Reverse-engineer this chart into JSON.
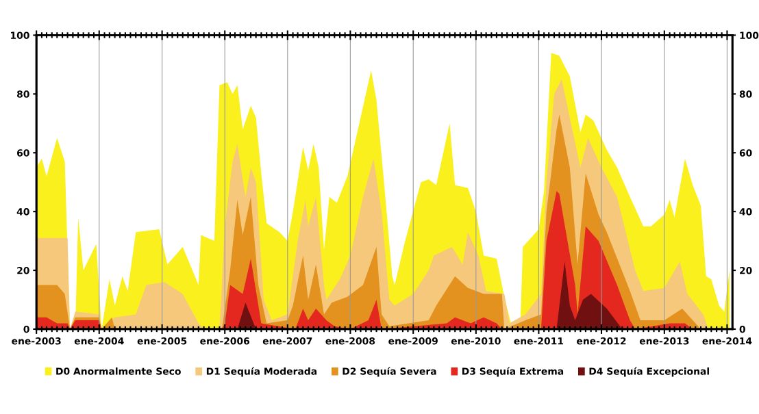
{
  "chart_data": {
    "type": "area",
    "xlim": [
      "2003-01-01",
      "2014-02-01"
    ],
    "xticks": [
      {
        "value": "2003-01-01",
        "label": "ene-2003"
      },
      {
        "value": "2004-01-01",
        "label": "ene-2004"
      },
      {
        "value": "2005-01-01",
        "label": "ene-2005"
      },
      {
        "value": "2006-01-01",
        "label": "ene-2006"
      },
      {
        "value": "2007-01-01",
        "label": "ene-2007"
      },
      {
        "value": "2008-01-01",
        "label": "ene-2008"
      },
      {
        "value": "2009-01-01",
        "label": "ene-2009"
      },
      {
        "value": "2010-01-01",
        "label": "ene-2010"
      },
      {
        "value": "2011-01-01",
        "label": "ene-2011"
      },
      {
        "value": "2012-01-01",
        "label": "ene-2012"
      },
      {
        "value": "2013-01-01",
        "label": "ene-2013"
      },
      {
        "value": "2014-01-01",
        "label": "ene-2014"
      },
      {
        "value": "2003-02-01",
        "label": null
      },
      {
        "value": "2003-03-01",
        "label": null
      },
      {
        "value": "2003-04-01",
        "label": null
      },
      {
        "value": "2003-05-01",
        "label": null
      },
      {
        "value": "2003-06-01",
        "label": null
      },
      {
        "value": "2003-07-01",
        "label": null
      },
      {
        "value": "2003-08-01",
        "label": null
      },
      {
        "value": "2003-09-01",
        "label": null
      },
      {
        "value": "2003-10-01",
        "label": null
      },
      {
        "value": "2003-11-01",
        "label": null
      },
      {
        "value": "2003-12-01",
        "label": null
      },
      {
        "value": "2004-02-01",
        "label": null
      },
      {
        "value": "2004-03-01",
        "label": null
      },
      {
        "value": "2004-04-01",
        "label": null
      },
      {
        "value": "2004-05-01",
        "label": null
      },
      {
        "value": "2004-06-01",
        "label": null
      },
      {
        "value": "2004-07-01",
        "label": null
      },
      {
        "value": "2004-08-01",
        "label": null
      },
      {
        "value": "2004-09-01",
        "label": null
      },
      {
        "value": "2004-10-01",
        "label": null
      },
      {
        "value": "2004-11-01",
        "label": null
      },
      {
        "value": "2004-12-01",
        "label": null
      },
      {
        "value": "2005-02-01",
        "label": null
      },
      {
        "value": "2005-03-01",
        "label": null
      },
      {
        "value": "2005-04-01",
        "label": null
      },
      {
        "value": "2005-05-01",
        "label": null
      },
      {
        "value": "2005-06-01",
        "label": null
      },
      {
        "value": "2005-07-01",
        "label": null
      },
      {
        "value": "2005-08-01",
        "label": null
      },
      {
        "value": "2005-09-01",
        "label": null
      },
      {
        "value": "2005-10-01",
        "label": null
      },
      {
        "value": "2005-11-01",
        "label": null
      },
      {
        "value": "2005-12-01",
        "label": null
      },
      {
        "value": "2006-02-01",
        "label": null
      },
      {
        "value": "2006-03-01",
        "label": null
      },
      {
        "value": "2006-04-01",
        "label": null
      },
      {
        "value": "2006-05-01",
        "label": null
      },
      {
        "value": "2006-06-01",
        "label": null
      },
      {
        "value": "2006-07-01",
        "label": null
      },
      {
        "value": "2006-08-01",
        "label": null
      },
      {
        "value": "2006-09-01",
        "label": null
      },
      {
        "value": "2006-10-01",
        "label": null
      },
      {
        "value": "2006-11-01",
        "label": null
      },
      {
        "value": "2006-12-01",
        "label": null
      },
      {
        "value": "2007-02-01",
        "label": null
      },
      {
        "value": "2007-03-01",
        "label": null
      },
      {
        "value": "2007-04-01",
        "label": null
      },
      {
        "value": "2007-05-01",
        "label": null
      },
      {
        "value": "2007-06-01",
        "label": null
      },
      {
        "value": "2007-07-01",
        "label": null
      },
      {
        "value": "2007-08-01",
        "label": null
      },
      {
        "value": "2007-09-01",
        "label": null
      },
      {
        "value": "2007-10-01",
        "label": null
      },
      {
        "value": "2007-11-01",
        "label": null
      },
      {
        "value": "2007-12-01",
        "label": null
      },
      {
        "value": "2008-02-01",
        "label": null
      },
      {
        "value": "2008-03-01",
        "label": null
      },
      {
        "value": "2008-04-01",
        "label": null
      },
      {
        "value": "2008-05-01",
        "label": null
      },
      {
        "value": "2008-06-01",
        "label": null
      },
      {
        "value": "2008-07-01",
        "label": null
      },
      {
        "value": "2008-08-01",
        "label": null
      },
      {
        "value": "2008-09-01",
        "label": null
      },
      {
        "value": "2008-10-01",
        "label": null
      },
      {
        "value": "2008-11-01",
        "label": null
      },
      {
        "value": "2008-12-01",
        "label": null
      },
      {
        "value": "2009-02-01",
        "label": null
      },
      {
        "value": "2009-03-01",
        "label": null
      },
      {
        "value": "2009-04-01",
        "label": null
      },
      {
        "value": "2009-05-01",
        "label": null
      },
      {
        "value": "2009-06-01",
        "label": null
      },
      {
        "value": "2009-07-01",
        "label": null
      },
      {
        "value": "2009-08-01",
        "label": null
      },
      {
        "value": "2009-09-01",
        "label": null
      },
      {
        "value": "2009-10-01",
        "label": null
      },
      {
        "value": "2009-11-01",
        "label": null
      },
      {
        "value": "2009-12-01",
        "label": null
      },
      {
        "value": "2010-02-01",
        "label": null
      },
      {
        "value": "2010-03-01",
        "label": null
      },
      {
        "value": "2010-04-01",
        "label": null
      },
      {
        "value": "2010-05-01",
        "label": null
      },
      {
        "value": "2010-06-01",
        "label": null
      },
      {
        "value": "2010-07-01",
        "label": null
      },
      {
        "value": "2010-08-01",
        "label": null
      },
      {
        "value": "2010-09-01",
        "label": null
      },
      {
        "value": "2010-10-01",
        "label": null
      },
      {
        "value": "2010-11-01",
        "label": null
      },
      {
        "value": "2010-12-01",
        "label": null
      },
      {
        "value": "2011-02-01",
        "label": null
      },
      {
        "value": "2011-03-01",
        "label": null
      },
      {
        "value": "2011-04-01",
        "label": null
      },
      {
        "value": "2011-05-01",
        "label": null
      },
      {
        "value": "2011-06-01",
        "label": null
      },
      {
        "value": "2011-07-01",
        "label": null
      },
      {
        "value": "2011-08-01",
        "label": null
      },
      {
        "value": "2011-09-01",
        "label": null
      },
      {
        "value": "2011-10-01",
        "label": null
      },
      {
        "value": "2011-11-01",
        "label": null
      },
      {
        "value": "2011-12-01",
        "label": null
      },
      {
        "value": "2012-02-01",
        "label": null
      },
      {
        "value": "2012-03-01",
        "label": null
      },
      {
        "value": "2012-04-01",
        "label": null
      },
      {
        "value": "2012-05-01",
        "label": null
      },
      {
        "value": "2012-06-01",
        "label": null
      },
      {
        "value": "2012-07-01",
        "label": null
      },
      {
        "value": "2012-08-01",
        "label": null
      },
      {
        "value": "2012-09-01",
        "label": null
      },
      {
        "value": "2012-10-01",
        "label": null
      },
      {
        "value": "2012-11-01",
        "label": null
      },
      {
        "value": "2012-12-01",
        "label": null
      },
      {
        "value": "2013-02-01",
        "label": null
      },
      {
        "value": "2013-03-01",
        "label": null
      },
      {
        "value": "2013-04-01",
        "label": null
      },
      {
        "value": "2013-05-01",
        "label": null
      },
      {
        "value": "2013-06-01",
        "label": null
      },
      {
        "value": "2013-07-01",
        "label": null
      },
      {
        "value": "2013-08-01",
        "label": null
      },
      {
        "value": "2013-09-01",
        "label": null
      },
      {
        "value": "2013-10-01",
        "label": null
      },
      {
        "value": "2013-11-01",
        "label": null
      },
      {
        "value": "2013-12-01",
        "label": null
      }
    ],
    "ylim": [
      0,
      100
    ],
    "yticks": [
      0,
      20,
      40,
      60,
      80,
      100
    ],
    "y2lim": [
      0,
      100
    ],
    "y2ticks": [
      0,
      20,
      40,
      60,
      80,
      100
    ],
    "grid": "x",
    "legend": "bottom",
    "series": [
      {
        "name": "D0 Anormalmente Seco",
        "color": "#faf01e",
        "x": [
          "2003-01-01",
          "2003-02-01",
          "2003-03-01",
          "2003-05-01",
          "2003-06-15",
          "2003-07-15",
          "2003-08-15",
          "2003-09-01",
          "2003-10-01",
          "2003-12-15",
          "2004-01-15",
          "2004-03-01",
          "2004-04-01",
          "2004-05-15",
          "2004-06-15",
          "2004-08-01",
          "2004-12-15",
          "2005-02-01",
          "2005-05-01",
          "2005-08-01",
          "2005-08-15",
          "2005-11-01",
          "2005-12-01",
          "2006-01-15",
          "2006-02-15",
          "2006-03-15",
          "2006-04-15",
          "2006-06-01",
          "2006-07-01",
          "2006-08-01",
          "2006-09-01",
          "2006-11-15",
          "2007-01-01",
          "2007-02-01",
          "2007-04-01",
          "2007-05-01",
          "2007-06-01",
          "2007-07-01",
          "2007-08-01",
          "2007-09-01",
          "2007-10-15",
          "2007-12-15",
          "2008-03-01",
          "2008-05-01",
          "2008-06-01",
          "2008-07-15",
          "2008-09-01",
          "2008-09-15",
          "2008-11-15",
          "2009-02-15",
          "2009-04-01",
          "2009-05-15",
          "2009-08-01",
          "2009-09-01",
          "2009-11-15",
          "2010-01-01",
          "2010-02-15",
          "2010-05-01",
          "2010-06-15",
          "2010-08-01",
          "2010-09-15",
          "2010-10-01",
          "2011-01-01",
          "2011-02-01",
          "2011-03-15",
          "2011-05-01",
          "2011-07-01",
          "2011-09-01",
          "2011-10-01",
          "2011-11-15",
          "2012-02-01",
          "2012-04-01",
          "2012-06-15",
          "2012-09-01",
          "2012-10-15",
          "2013-01-01",
          "2013-02-01",
          "2013-03-01",
          "2013-05-01",
          "2013-06-15",
          "2013-08-01",
          "2013-09-01",
          "2013-10-01",
          "2013-11-15",
          "2013-12-15",
          "2014-01-15"
        ],
        "values": [
          55,
          58,
          52,
          65,
          57,
          0,
          0,
          38,
          20,
          29,
          0,
          17,
          8,
          18,
          13,
          33,
          34,
          22,
          28,
          15,
          32,
          30,
          83,
          84,
          80,
          83,
          68,
          76,
          72,
          53,
          36,
          33,
          30,
          40,
          62,
          54,
          63,
          55,
          27,
          45,
          43,
          52,
          72,
          88,
          78,
          50,
          18,
          15,
          30,
          50,
          51,
          49,
          70,
          49,
          48,
          40,
          25,
          24,
          11,
          0,
          0,
          28,
          34,
          47,
          94,
          93,
          86,
          67,
          73,
          71,
          61,
          55,
          45,
          35,
          35,
          39,
          44,
          38,
          58,
          49,
          42,
          18,
          17,
          8,
          6,
          20
        ]
      },
      {
        "name": "D1 Sequía Moderada",
        "color": "#f5c87c",
        "x": [
          "2003-01-01",
          "2003-07-01",
          "2003-07-15",
          "2003-08-15",
          "2004-01-01",
          "2004-01-15",
          "2004-04-01",
          "2004-08-01",
          "2004-10-01",
          "2005-01-15",
          "2005-05-01",
          "2005-08-01",
          "2005-09-01",
          "2005-12-01",
          "2006-01-01",
          "2006-02-15",
          "2006-03-15",
          "2006-05-01",
          "2006-06-01",
          "2006-07-01",
          "2006-08-15",
          "2006-10-01",
          "2007-01-01",
          "2007-03-01",
          "2007-04-15",
          "2007-05-01",
          "2007-06-15",
          "2007-08-01",
          "2007-08-15",
          "2007-11-01",
          "2008-01-01",
          "2008-03-15",
          "2008-05-15",
          "2008-07-01",
          "2008-08-15",
          "2008-09-15",
          "2009-01-01",
          "2009-04-01",
          "2009-05-01",
          "2009-08-15",
          "2009-10-15",
          "2009-11-15",
          "2010-01-15",
          "2010-03-01",
          "2010-06-15",
          "2010-07-15",
          "2010-10-15",
          "2011-01-15",
          "2011-02-15",
          "2011-04-01",
          "2011-05-15",
          "2011-07-15",
          "2011-09-01",
          "2011-10-15",
          "2012-01-01",
          "2012-04-01",
          "2012-07-15",
          "2012-09-01",
          "2013-01-01",
          "2013-04-01",
          "2013-05-15",
          "2013-08-15",
          "2013-09-15",
          "2014-01-15"
        ],
        "values": [
          31,
          31,
          0,
          6,
          5,
          0,
          4,
          5,
          15,
          16,
          12,
          2,
          0,
          0,
          35,
          57,
          63,
          45,
          55,
          50,
          10,
          3,
          5,
          30,
          44,
          35,
          45,
          15,
          10,
          17,
          25,
          45,
          58,
          40,
          10,
          8,
          12,
          20,
          25,
          28,
          22,
          33,
          25,
          13,
          12,
          2,
          5,
          12,
          50,
          80,
          85,
          68,
          55,
          65,
          55,
          45,
          20,
          13,
          14,
          23,
          12,
          5,
          0,
          0
        ]
      },
      {
        "name": "D2 Sequía Severa",
        "color": "#e3921f",
        "x": [
          "2003-01-01",
          "2003-05-01",
          "2003-06-15",
          "2003-07-15",
          "2003-08-15",
          "2004-01-01",
          "2004-01-15",
          "2004-03-15",
          "2004-04-01",
          "2005-12-15",
          "2006-02-01",
          "2006-03-15",
          "2006-04-15",
          "2006-06-01",
          "2006-07-15",
          "2006-09-01",
          "2007-01-01",
          "2007-02-01",
          "2007-04-01",
          "2007-05-01",
          "2007-06-15",
          "2007-08-01",
          "2007-09-15",
          "2007-12-15",
          "2008-03-15",
          "2008-06-01",
          "2008-07-01",
          "2008-08-15",
          "2009-04-01",
          "2009-05-15",
          "2009-09-01",
          "2009-11-15",
          "2010-02-15",
          "2010-06-01",
          "2010-06-15",
          "2010-10-15",
          "2011-01-15",
          "2011-02-15",
          "2011-04-15",
          "2011-05-01",
          "2011-07-01",
          "2011-08-15",
          "2011-10-01",
          "2011-12-15",
          "2012-02-01",
          "2012-06-15",
          "2012-08-15",
          "2013-01-01",
          "2013-04-15",
          "2013-06-15",
          "2013-08-01",
          "2014-01-15"
        ],
        "values": [
          15,
          15,
          12,
          0,
          4,
          4,
          0,
          4,
          0,
          0,
          20,
          44,
          32,
          45,
          15,
          2,
          3,
          8,
          25,
          10,
          22,
          5,
          9,
          11,
          15,
          28,
          5,
          1,
          3,
          8,
          18,
          14,
          12,
          12,
          0,
          3,
          5,
          40,
          68,
          73,
          55,
          22,
          53,
          39,
          33,
          13,
          3,
          3,
          7,
          3,
          0,
          0
        ]
      },
      {
        "name": "D3 Sequía Extrema",
        "color": "#e4281f",
        "x": [
          "2003-01-01",
          "2003-03-01",
          "2003-05-01",
          "2003-07-01",
          "2003-07-15",
          "2003-08-15",
          "2004-01-01",
          "2004-01-15",
          "2005-12-15",
          "2006-01-01",
          "2006-02-01",
          "2006-04-15",
          "2006-06-01",
          "2006-08-01",
          "2007-02-15",
          "2007-04-01",
          "2007-05-01",
          "2007-06-15",
          "2007-08-15",
          "2007-10-01",
          "2008-01-01",
          "2008-04-15",
          "2008-06-01",
          "2008-07-01",
          "2009-07-15",
          "2009-09-01",
          "2009-12-01",
          "2010-02-15",
          "2010-05-01",
          "2010-06-01",
          "2011-01-15",
          "2011-02-15",
          "2011-04-15",
          "2011-05-01",
          "2011-08-01",
          "2011-08-15",
          "2011-10-01",
          "2011-12-15",
          "2012-04-01",
          "2012-06-15",
          "2012-07-15",
          "2013-02-01",
          "2013-05-01",
          "2013-06-15",
          "2014-01-15"
        ],
        "values": [
          4,
          4,
          2,
          2,
          0,
          3,
          3,
          0,
          0,
          2,
          15,
          12,
          24,
          2,
          0,
          7,
          3,
          7,
          3,
          1,
          0,
          3,
          10,
          0,
          2,
          4,
          2,
          4,
          2,
          0,
          0,
          30,
          47,
          46,
          15,
          5,
          35,
          30,
          15,
          3,
          0,
          2,
          2,
          0,
          0
        ]
      },
      {
        "name": "D4 Sequía Excepcional",
        "color": "#701010",
        "x": [
          "2003-01-01",
          "2006-03-15",
          "2006-05-01",
          "2006-07-01",
          "2011-04-15",
          "2011-06-01",
          "2011-07-01",
          "2011-08-01",
          "2011-09-15",
          "2011-11-01",
          "2012-02-01",
          "2012-05-01",
          "2014-01-15"
        ],
        "values": [
          0,
          0,
          9,
          0,
          0,
          23,
          8,
          3,
          10,
          12,
          7,
          0,
          0
        ]
      }
    ]
  }
}
